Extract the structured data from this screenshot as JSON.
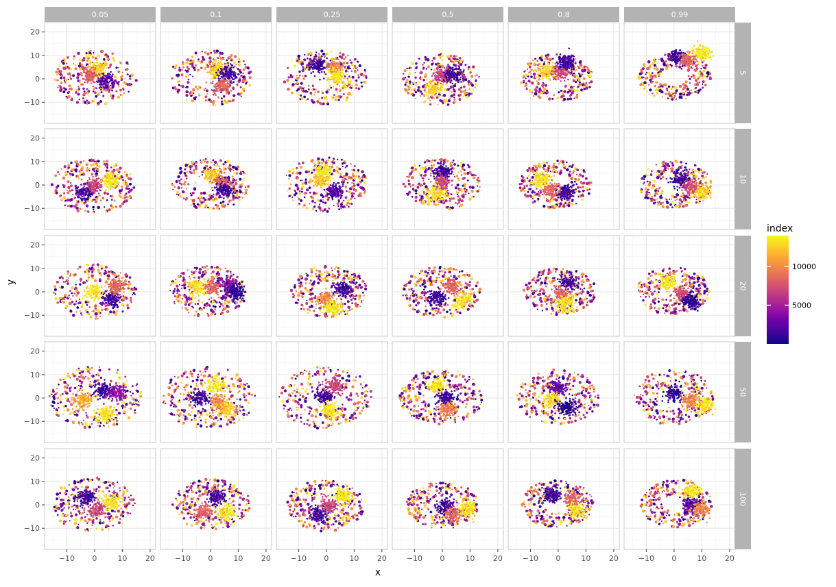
{
  "chart_data": {
    "type": "scatter",
    "facet": "grid",
    "x_facet_labels": [
      "0.05",
      "0.1",
      "0.25",
      "0.5",
      "0.8",
      "0.99"
    ],
    "y_facet_labels": [
      "5",
      "10",
      "20",
      "50",
      "100"
    ],
    "xlabel": "x",
    "ylabel": "y",
    "xlim": [
      -18,
      22
    ],
    "ylim": [
      -19,
      24
    ],
    "x_ticks": [
      -10,
      0,
      10,
      20
    ],
    "y_ticks": [
      -10,
      0,
      10,
      20
    ],
    "x_tick_labels": [
      "−10",
      "0",
      "10",
      "20"
    ],
    "y_tick_labels": [
      "−10",
      "0",
      "10",
      "20"
    ],
    "grid": true,
    "legend": {
      "title": "index",
      "position": "right",
      "range": [
        0,
        14000
      ],
      "ticks": [
        5000,
        10000
      ],
      "tick_labels": [
        "5000",
        "10000"
      ]
    },
    "colormap": [
      "#0d0887",
      "#46039f",
      "#7201a8",
      "#9c179e",
      "#bd3786",
      "#d8576b",
      "#ed7953",
      "#fb9f3a",
      "#fdca26",
      "#f0f921"
    ],
    "colors": {
      "panel_background": "#ffffff",
      "grid_major": "#e5e5e5",
      "grid_minor": "#f2f2f2",
      "strip_background": "#b3b3b3",
      "strip_text": "#ffffff",
      "axis_text": "#4d4d4d"
    },
    "panels": [
      {
        "col": 0,
        "row": 0,
        "blobs": [
          {
            "x": 1,
            "y": 4,
            "t": 0.9
          },
          {
            "x": 4,
            "y": -1,
            "t": 0.15
          },
          {
            "x": -2,
            "y": 1,
            "t": 0.6
          }
        ],
        "cloud_radius": 15
      },
      {
        "col": 1,
        "row": 0,
        "blobs": [
          {
            "x": 2,
            "y": 4,
            "t": 0.9
          },
          {
            "x": 6,
            "y": 2,
            "t": 0.1
          },
          {
            "x": 4,
            "y": -3,
            "t": 0.6
          }
        ],
        "cloud_radius": 15
      },
      {
        "col": 2,
        "row": 0,
        "blobs": [
          {
            "x": -3,
            "y": 6,
            "t": 0.1
          },
          {
            "x": 3,
            "y": 5,
            "t": 0.7
          },
          {
            "x": 4,
            "y": 1,
            "t": 0.95
          }
        ],
        "cloud_radius": 15
      },
      {
        "col": 3,
        "row": 0,
        "blobs": [
          {
            "x": -3,
            "y": -4,
            "t": 0.9
          },
          {
            "x": 0,
            "y": 1,
            "t": 0.5
          },
          {
            "x": 4,
            "y": 2,
            "t": 0.1
          }
        ],
        "cloud_radius": 14
      },
      {
        "col": 4,
        "row": 0,
        "blobs": [
          {
            "x": -4,
            "y": 3,
            "t": 0.9
          },
          {
            "x": 1,
            "y": 3,
            "t": 0.5
          },
          {
            "x": 3,
            "y": 7,
            "t": 0.1
          }
        ],
        "cloud_radius": 13
      },
      {
        "col": 5,
        "row": 0,
        "blobs": [
          {
            "x": 1,
            "y": 9,
            "t": 0.1
          },
          {
            "x": 5,
            "y": 8,
            "t": 0.6
          },
          {
            "x": 10,
            "y": 11,
            "t": 0.95
          }
        ],
        "cloud_radius": 13
      },
      {
        "col": 0,
        "row": 1,
        "blobs": [
          {
            "x": -3,
            "y": -3,
            "t": 0.1
          },
          {
            "x": 0,
            "y": 0,
            "t": 0.5
          },
          {
            "x": 6,
            "y": 2,
            "t": 0.95
          }
        ],
        "cloud_radius": 15
      },
      {
        "col": 1,
        "row": 1,
        "blobs": [
          {
            "x": 1,
            "y": 4,
            "t": 0.9
          },
          {
            "x": 4,
            "y": 1,
            "t": 0.6
          },
          {
            "x": 5,
            "y": -2,
            "t": 0.1
          }
        ],
        "cloud_radius": 14
      },
      {
        "col": 2,
        "row": 1,
        "blobs": [
          {
            "x": -2,
            "y": 2,
            "t": 0.85
          },
          {
            "x": -1,
            "y": 6,
            "t": 0.95
          },
          {
            "x": 3,
            "y": -3,
            "t": 0.15
          }
        ],
        "cloud_radius": 15
      },
      {
        "col": 3,
        "row": 1,
        "blobs": [
          {
            "x": 0,
            "y": 6,
            "t": 0.1
          },
          {
            "x": 0,
            "y": 1,
            "t": 0.5
          },
          {
            "x": -2,
            "y": -4,
            "t": 0.95
          }
        ],
        "cloud_radius": 14
      },
      {
        "col": 4,
        "row": 1,
        "blobs": [
          {
            "x": -6,
            "y": 2,
            "t": 0.95
          },
          {
            "x": -2,
            "y": -2,
            "t": 0.6
          },
          {
            "x": 3,
            "y": -3,
            "t": 0.1
          }
        ],
        "cloud_radius": 13
      },
      {
        "col": 5,
        "row": 1,
        "blobs": [
          {
            "x": 2,
            "y": 2,
            "t": 0.1
          },
          {
            "x": 6,
            "y": -1,
            "t": 0.5
          },
          {
            "x": 10,
            "y": -3,
            "t": 0.9
          }
        ],
        "cloud_radius": 13
      },
      {
        "col": 0,
        "row": 2,
        "blobs": [
          {
            "x": 0,
            "y": 0,
            "t": 0.95
          },
          {
            "x": 6,
            "y": -3,
            "t": 0.1
          },
          {
            "x": 8,
            "y": 2,
            "t": 0.6
          }
        ],
        "cloud_radius": 15
      },
      {
        "col": 1,
        "row": 2,
        "blobs": [
          {
            "x": -5,
            "y": 2,
            "t": 0.95
          },
          {
            "x": 1,
            "y": 2,
            "t": 0.6
          },
          {
            "x": 7,
            "y": 3,
            "t": 0.3
          },
          {
            "x": 9,
            "y": 0,
            "t": 0.05
          }
        ],
        "cloud_radius": 14
      },
      {
        "col": 2,
        "row": 2,
        "blobs": [
          {
            "x": 6,
            "y": 1,
            "t": 0.1
          },
          {
            "x": 0,
            "y": -3,
            "t": 0.7
          },
          {
            "x": 2,
            "y": -7,
            "t": 0.95
          }
        ],
        "cloud_radius": 14
      },
      {
        "col": 3,
        "row": 2,
        "blobs": [
          {
            "x": -2,
            "y": -2,
            "t": 0.1
          },
          {
            "x": 3,
            "y": 2,
            "t": 0.6
          },
          {
            "x": 7,
            "y": -4,
            "t": 0.95
          }
        ],
        "cloud_radius": 14
      },
      {
        "col": 4,
        "row": 2,
        "blobs": [
          {
            "x": 4,
            "y": 4,
            "t": 0.1
          },
          {
            "x": 1,
            "y": -1,
            "t": 0.6
          },
          {
            "x": 2,
            "y": -5,
            "t": 0.95
          }
        ],
        "cloud_radius": 13
      },
      {
        "col": 5,
        "row": 2,
        "blobs": [
          {
            "x": -2,
            "y": 4,
            "t": 0.95
          },
          {
            "x": 3,
            "y": -1,
            "t": 0.5
          },
          {
            "x": 6,
            "y": -4,
            "t": 0.05
          }
        ],
        "cloud_radius": 13
      },
      {
        "col": 0,
        "row": 3,
        "blobs": [
          {
            "x": 3,
            "y": 3,
            "t": 0.1
          },
          {
            "x": -4,
            "y": -1,
            "t": 0.8
          },
          {
            "x": 4,
            "y": -7,
            "t": 0.95
          },
          {
            "x": 8,
            "y": 2,
            "t": 0.3
          }
        ],
        "cloud_radius": 17
      },
      {
        "col": 1,
        "row": 3,
        "blobs": [
          {
            "x": -4,
            "y": 0,
            "t": 0.1
          },
          {
            "x": 2,
            "y": 5,
            "t": 0.95
          },
          {
            "x": 3,
            "y": -2,
            "t": 0.7
          },
          {
            "x": 6,
            "y": -5,
            "t": 0.9
          }
        ],
        "cloud_radius": 17
      },
      {
        "col": 2,
        "row": 3,
        "blobs": [
          {
            "x": -1,
            "y": 1,
            "t": 0.1
          },
          {
            "x": 3,
            "y": 5,
            "t": 0.5
          },
          {
            "x": 1,
            "y": -5,
            "t": 0.95
          }
        ],
        "cloud_radius": 17
      },
      {
        "col": 3,
        "row": 3,
        "blobs": [
          {
            "x": -2,
            "y": 5,
            "t": 0.95
          },
          {
            "x": 1,
            "y": 0,
            "t": 0.1
          },
          {
            "x": 2,
            "y": -5,
            "t": 0.7
          }
        ],
        "cloud_radius": 15
      },
      {
        "col": 4,
        "row": 3,
        "blobs": [
          {
            "x": 0,
            "y": 4,
            "t": 0.2
          },
          {
            "x": -2,
            "y": -1,
            "t": 0.9
          },
          {
            "x": 3,
            "y": -4,
            "t": 0.05
          }
        ],
        "cloud_radius": 15
      },
      {
        "col": 5,
        "row": 3,
        "blobs": [
          {
            "x": 0,
            "y": 2,
            "t": 0.05
          },
          {
            "x": 6,
            "y": -1,
            "t": 0.7
          },
          {
            "x": 11,
            "y": -3,
            "t": 0.95
          }
        ],
        "cloud_radius": 15
      },
      {
        "col": 0,
        "row": 4,
        "blobs": [
          {
            "x": -3,
            "y": 3,
            "t": 0.1
          },
          {
            "x": 1,
            "y": -2,
            "t": 0.5
          },
          {
            "x": 6,
            "y": 1,
            "t": 0.95
          }
        ],
        "cloud_radius": 15
      },
      {
        "col": 1,
        "row": 4,
        "blobs": [
          {
            "x": 2,
            "y": 3,
            "t": 0.1
          },
          {
            "x": -2,
            "y": -3,
            "t": 0.6
          },
          {
            "x": 6,
            "y": -3,
            "t": 0.95
          }
        ],
        "cloud_radius": 14
      },
      {
        "col": 2,
        "row": 4,
        "blobs": [
          {
            "x": -3,
            "y": -4,
            "t": 0.1
          },
          {
            "x": 1,
            "y": 0,
            "t": 0.5
          },
          {
            "x": 6,
            "y": 4,
            "t": 0.95
          }
        ],
        "cloud_radius": 14
      },
      {
        "col": 3,
        "row": 4,
        "blobs": [
          {
            "x": 1,
            "y": -1,
            "t": 0.1
          },
          {
            "x": 4,
            "y": -4,
            "t": 0.6
          },
          {
            "x": 9,
            "y": -2,
            "t": 0.95
          }
        ],
        "cloud_radius": 13
      },
      {
        "col": 4,
        "row": 4,
        "blobs": [
          {
            "x": -2,
            "y": 4,
            "t": 0.1
          },
          {
            "x": 5,
            "y": 2,
            "t": 0.6
          },
          {
            "x": 7,
            "y": -3,
            "t": 0.95
          }
        ],
        "cloud_radius": 13
      },
      {
        "col": 5,
        "row": 4,
        "blobs": [
          {
            "x": 6,
            "y": 6,
            "t": 0.95
          },
          {
            "x": 6,
            "y": 0,
            "t": 0.15
          },
          {
            "x": 10,
            "y": -2,
            "t": 0.7
          }
        ],
        "cloud_radius": 13
      }
    ]
  }
}
